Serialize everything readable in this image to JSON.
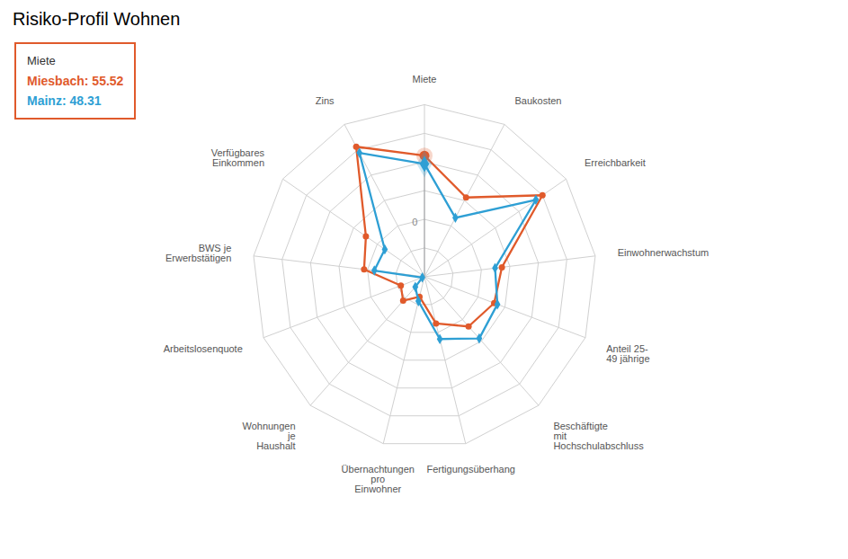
{
  "chart_data": {
    "type": "radar",
    "title": "Risiko-Profil Wohnen",
    "categories": [
      "Miete",
      "Baukosten",
      "Erreichbarkeit",
      "Einwohnerwachstum",
      "Anteil 25-\n49 jährige",
      "Beschäftigte\nmit\nHochschulabschluss",
      "Fertigungsüberhang",
      "Übernachtungen\npro\nEinwohner",
      "Wohnungen\nje\nHaushalt",
      "Arbeitslosenquote",
      "BWS je\nErwerbstätigen",
      "Verfügbares\nEinkommen",
      "Zins"
    ],
    "series": [
      {
        "name": "Miesbach",
        "color": "#e05a2b",
        "marker": "circle",
        "values": [
          55.52,
          28,
          75,
          18,
          15,
          8,
          -8,
          -32,
          -22,
          -28,
          3,
          12,
          78
        ]
      },
      {
        "name": "Mainz",
        "color": "#2e9fd4",
        "marker": "diamond",
        "values": [
          48.31,
          8,
          68,
          12,
          18,
          22,
          6,
          -28,
          -38,
          -48,
          -6,
          -8,
          72
        ]
      }
    ],
    "ylim": [
      -50,
      100
    ],
    "yticks": [
      {
        "value": -50,
        "label": null
      },
      {
        "value": -25,
        "label": null
      },
      0,
      {
        "value": 25,
        "label": null
      },
      {
        "value": 50,
        "label": null
      },
      {
        "value": 75,
        "label": null
      },
      {
        "value": 100,
        "label": null
      }
    ],
    "grid": true,
    "annotations": [
      {
        "text": "Miete"
      },
      {
        "text": "Miesbach: 55.52",
        "color": "#e05a2b"
      },
      {
        "text": "Mainz: 48.31",
        "color": "#2e9fd4"
      }
    ]
  }
}
